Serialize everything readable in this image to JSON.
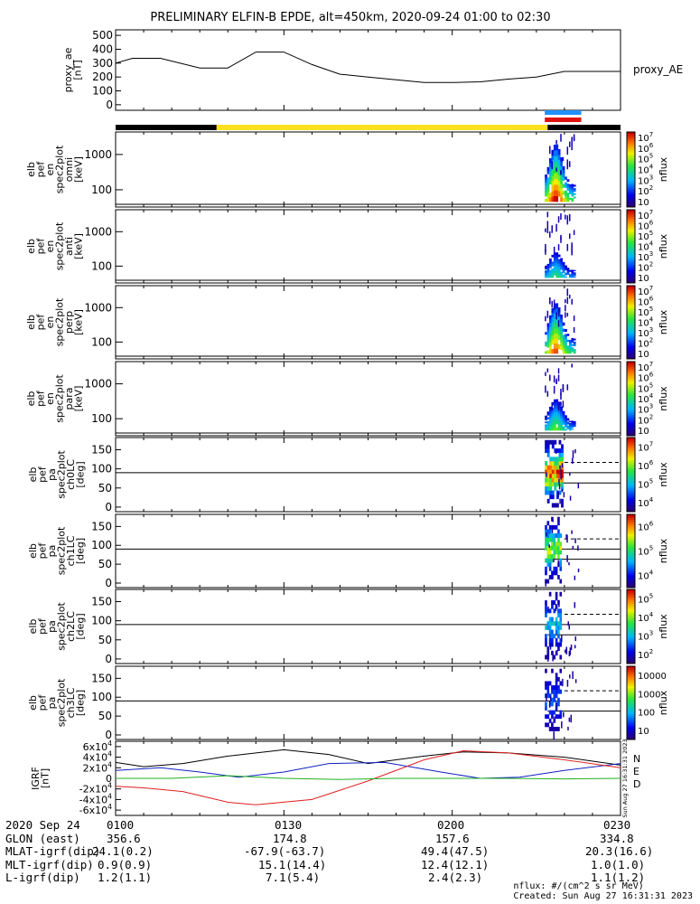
{
  "title": "PRELIMINARY ELFIN-B EPDE, alt=450km, 2020-09-24 01:00 to 02:30",
  "colors": {
    "orbit_black": "#000000",
    "orbit_yellow": "#ffe020",
    "science_blue": "#2090ff",
    "science_red": "#e01010",
    "bx": "#000000",
    "by": "#1020c0",
    "bz": "#e02020",
    "green": "#20b020"
  },
  "chart_data": [
    {
      "type": "line",
      "name": "proxy_ae",
      "ylabel": "proxy_ae\n[nT]",
      "series_label": "proxy_AE",
      "yticks": [
        "0",
        "100",
        "200",
        "300",
        "400",
        "500"
      ],
      "ylim": [
        -40,
        540
      ],
      "x_minutes": [
        0,
        3,
        8,
        15,
        20,
        25,
        30,
        35,
        40,
        45,
        50,
        55,
        60,
        65,
        70,
        75,
        80,
        85,
        90
      ],
      "values": [
        300,
        335,
        335,
        265,
        265,
        380,
        380,
        290,
        220,
        200,
        180,
        160,
        160,
        165,
        185,
        200,
        240,
        240,
        240
      ]
    },
    {
      "type": "heatmap",
      "name": "elb pef en spec2plot omni",
      "ylabel": "elb\npef\nen\nspec2plot\nomni\n[keV]",
      "yticks": [
        "100",
        "1000"
      ],
      "colorbar": {
        "label": "nflux",
        "ticks": [
          "10",
          "10^2",
          "10^3",
          "10^4",
          "10^5",
          "10^6",
          "10^7"
        ]
      }
    },
    {
      "type": "heatmap",
      "name": "elb pef en spec2plot anti",
      "ylabel": "elb\npef\nen\nspec2plot\nanti\n[keV]",
      "yticks": [
        "100",
        "1000"
      ],
      "colorbar": {
        "label": "nflux",
        "ticks": [
          "10",
          "10^2",
          "10^3",
          "10^4",
          "10^5",
          "10^6",
          "10^7"
        ]
      }
    },
    {
      "type": "heatmap",
      "name": "elb pef en spec2plot perp",
      "ylabel": "elb\npef\nen\nspec2plot\nperp\n[keV]",
      "yticks": [
        "100",
        "1000"
      ],
      "colorbar": {
        "label": "nflux",
        "ticks": [
          "10",
          "10^2",
          "10^3",
          "10^4",
          "10^5",
          "10^6",
          "10^7"
        ]
      }
    },
    {
      "type": "heatmap",
      "name": "elb pef en spec2plot para",
      "ylabel": "elb\npef\nen\nspec2plot\npara\n[keV]",
      "yticks": [
        "100",
        "1000"
      ],
      "colorbar": {
        "label": "nflux",
        "ticks": [
          "10",
          "10^2",
          "10^3",
          "10^4",
          "10^5",
          "10^6",
          "10^7"
        ]
      }
    },
    {
      "type": "heatmap",
      "name": "elb pef pa spec2plot ch0LC",
      "ylabel": "elb\npef\npa\nspec2plot\nch0LC\n[deg]",
      "yticks": [
        "0",
        "50",
        "100",
        "150"
      ],
      "colorbar": {
        "label": "nflux",
        "ticks": [
          "10^4",
          "10^5",
          "10^6",
          "10^7"
        ]
      }
    },
    {
      "type": "heatmap",
      "name": "elb pef pa spec2plot ch1LC",
      "ylabel": "elb\npef\npa\nspec2plot\nch1LC\n[deg]",
      "yticks": [
        "0",
        "50",
        "100",
        "150"
      ],
      "colorbar": {
        "label": "nflux",
        "ticks": [
          "10^4",
          "10^5",
          "10^6"
        ]
      }
    },
    {
      "type": "heatmap",
      "name": "elb pef pa spec2plot ch2LC",
      "ylabel": "elb\npef\npa\nspec2plot\nch2LC\n[deg]",
      "yticks": [
        "0",
        "50",
        "100",
        "150"
      ],
      "colorbar": {
        "label": "nflux",
        "ticks": [
          "10^2",
          "10^3",
          "10^4",
          "10^5"
        ]
      }
    },
    {
      "type": "heatmap",
      "name": "elb pef pa spec2plot ch3LC",
      "ylabel": "elb\npef\npa\nspec2plot\nch3LC\n[deg]",
      "yticks": [
        "0",
        "50",
        "100",
        "150"
      ],
      "colorbar": {
        "label": "nflux",
        "ticks": [
          "10",
          "100",
          "1000",
          "10000"
        ]
      }
    },
    {
      "type": "line",
      "name": "IGRF",
      "ylabel": "IGRF\n[nT]",
      "yticks": [
        "-6x10^4",
        "-4x10^4",
        "-2x10^4",
        "0",
        "2x10^4",
        "4x10^4",
        "6x10^4"
      ],
      "ylim": [
        -70000,
        70000
      ],
      "legend": [
        "N",
        "E",
        "D"
      ],
      "stamp": "Sun Aug 27 16:31:31 2023",
      "series": [
        {
          "name": "black",
          "color": "#000000",
          "x_minutes": [
            0,
            5,
            12,
            20,
            30,
            38,
            45,
            55,
            62,
            70,
            80,
            90
          ],
          "values": [
            30000,
            22000,
            28000,
            42000,
            54000,
            45000,
            28000,
            42000,
            50000,
            48000,
            40000,
            25000
          ]
        },
        {
          "name": "blue",
          "color": "#1020c0",
          "x_minutes": [
            0,
            8,
            15,
            22,
            30,
            38,
            48,
            58,
            65,
            72,
            80,
            90
          ],
          "values": [
            15000,
            20000,
            12000,
            2000,
            12000,
            28000,
            30000,
            12000,
            0,
            2000,
            15000,
            28000
          ]
        },
        {
          "name": "red",
          "color": "#e02020",
          "x_minutes": [
            0,
            5,
            12,
            20,
            25,
            35,
            45,
            55,
            62,
            70,
            80,
            90
          ],
          "values": [
            -15000,
            -18000,
            -25000,
            -45000,
            -50000,
            -40000,
            -5000,
            35000,
            52000,
            48000,
            35000,
            20000
          ]
        },
        {
          "name": "green",
          "color": "#20b020",
          "x_minutes": [
            0,
            10,
            20,
            30,
            40,
            50,
            60,
            70,
            80,
            90
          ],
          "values": [
            0,
            0,
            5000,
            0,
            -2000,
            0,
            0,
            0,
            -1000,
            0
          ]
        }
      ]
    }
  ],
  "x_ticks": [
    "0100",
    "0130",
    "0200",
    "0230"
  ],
  "footer": {
    "rows": [
      {
        "label": "2020 Sep 24",
        "values": [
          "0100",
          "0130",
          "0200",
          "0230"
        ]
      },
      {
        "label": "GLON (east)",
        "values": [
          "356.6",
          "174.8",
          "157.6",
          "334.8"
        ]
      },
      {
        "label": "MLAT-igrf(dip)",
        "values": [
          "24.1(0.2)",
          "-67.9(-63.7)",
          "49.4(47.5)",
          "20.3(16.6)"
        ]
      },
      {
        "label": "MLT-igrf(dip)",
        "values": [
          "0.9(0.9)",
          "15.1(14.4)",
          "12.4(12.1)",
          "1.0(1.0)"
        ]
      },
      {
        "label": "L-igrf(dip)",
        "values": [
          "1.2(1.1)",
          "7.1(5.4)",
          "2.4(2.3)",
          "1.1(1.2)"
        ]
      }
    ]
  },
  "credits": {
    "line1": "nflux: #/(cm^2 s sr MeV)",
    "line2": "Created: Sun Aug 27 16:31:31 2023"
  }
}
